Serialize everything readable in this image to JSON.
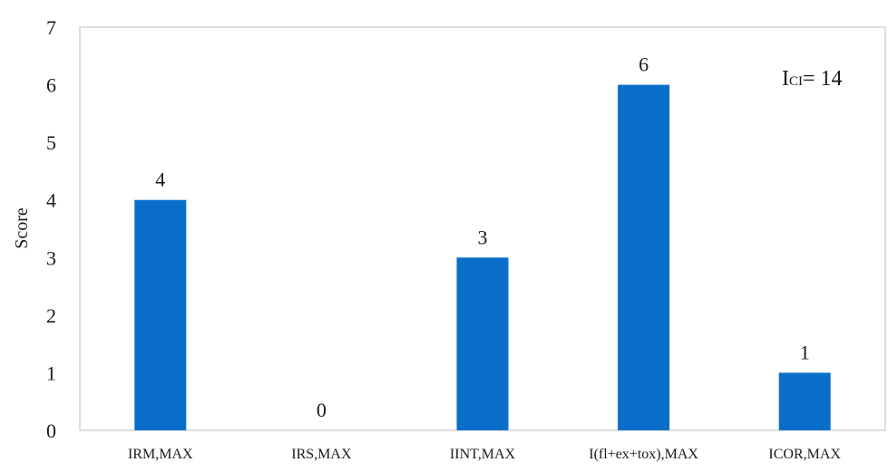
{
  "chart_data": {
    "type": "bar",
    "categories": [
      "IRM,MAX",
      "IRS,MAX",
      "IINT,MAX",
      "I(fl+ex+tox),MAX",
      "ICOR,MAX"
    ],
    "values": [
      4,
      0,
      3,
      6,
      1
    ],
    "data_labels": [
      "4",
      "0",
      "3",
      "6",
      "1"
    ],
    "ylabel": "Score",
    "ylim": [
      0,
      7
    ],
    "yticks": [
      0,
      1,
      2,
      3,
      4,
      5,
      6,
      7
    ],
    "grid": false,
    "bar_color": "#0a6fc9",
    "annotation": {
      "main": "I",
      "sub": "CI",
      "rest": "= 14"
    }
  }
}
